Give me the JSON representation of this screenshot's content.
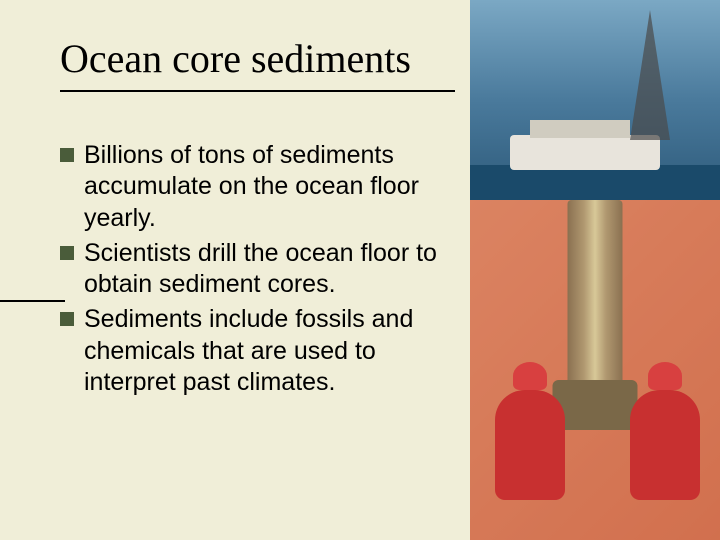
{
  "slide": {
    "title": "Ocean core sediments",
    "bullets": [
      "Billions of tons of sediments accumulate on the ocean floor yearly.",
      "Scientists drill the ocean floor to obtain sediment cores.",
      "Sediments include fossils and chemicals that are used to interpret past climates."
    ],
    "background_color": "#f0eed8",
    "title_font": "Times New Roman",
    "title_fontsize": 40,
    "body_font": "Arial",
    "body_fontsize": 25,
    "bullet_color": "#4a5c3a",
    "text_color": "#000000"
  },
  "images": {
    "top": {
      "description": "drilling-ship-at-sea",
      "sky_color": "#7ba8c4",
      "water_color": "#1a4a6a",
      "ship_color": "#e8e4dc"
    },
    "bottom": {
      "description": "workers-handling-sediment-core-pipe",
      "worker_suit_color": "#c83030",
      "pipe_color": "#b09870",
      "equipment_color": "#c82828"
    }
  }
}
